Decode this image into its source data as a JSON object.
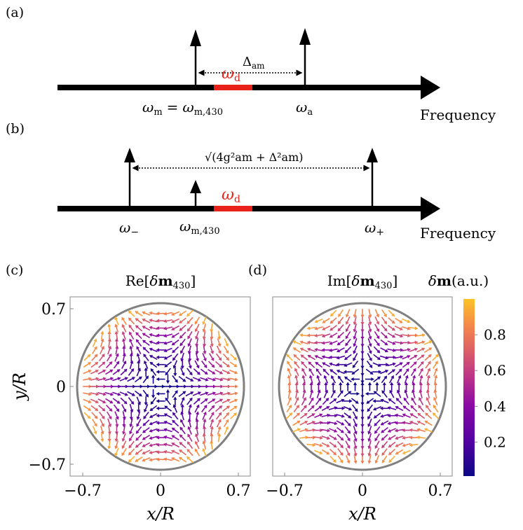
{
  "panel_a": {
    "label": "(a)",
    "delta_label": "Δ",
    "delta_sub": "am",
    "drive_label": "ω",
    "drive_sub": "d",
    "left_peak_label": "ω",
    "left_peak_sub": "m",
    "equals": "=",
    "left_peak_label2": "ω",
    "left_peak_sub2": "m,430",
    "right_peak_label": "ω",
    "right_peak_sub": "a",
    "axis_label": "Frequency"
  },
  "panel_b": {
    "label": "(b)",
    "splitting_label": "√(4g²am + Δ²am)",
    "drive_label": "ω",
    "drive_sub": "d",
    "minus_label": "ω",
    "minus_sub": "−",
    "center_label": "ω",
    "center_sub": "m,430",
    "plus_label": "ω",
    "plus_sub": "+",
    "axis_label": "Frequency"
  },
  "panel_c": {
    "label": "(c)",
    "title": "Re[δm430]",
    "title_pre": "Re[",
    "title_delta": "δ",
    "title_m": "m",
    "title_sub": "430",
    "title_post": "]",
    "xlabel": "x/R",
    "ylabel": "y/R",
    "xticks": [
      "−0.7",
      "0",
      "0.7"
    ],
    "yticks": [
      "0.7",
      "0",
      "−0.7"
    ]
  },
  "panel_d": {
    "label": "(d)",
    "title": "Im[δm430]",
    "title_pre": "Im[",
    "title_delta": "δ",
    "title_m": "m",
    "title_sub": "430",
    "title_post": "]",
    "xlabel": "x/R",
    "xticks": [
      "−0.7",
      "0",
      "0.7"
    ]
  },
  "colorbar": {
    "title": "δm(a.u.)",
    "title_delta": "δ",
    "title_m": "m",
    "title_unit": "(a.u.)",
    "ticks": [
      "0.8",
      "0.6",
      "0.4",
      "0.2"
    ],
    "tick_values": [
      0.8,
      0.6,
      0.4,
      0.2
    ],
    "range": [
      0.01,
      1.0
    ],
    "colormap": "plasma"
  },
  "colors": {
    "axis": "#000000",
    "drive": "#e8211b",
    "frame": "#888888",
    "circle": "#808080"
  }
}
